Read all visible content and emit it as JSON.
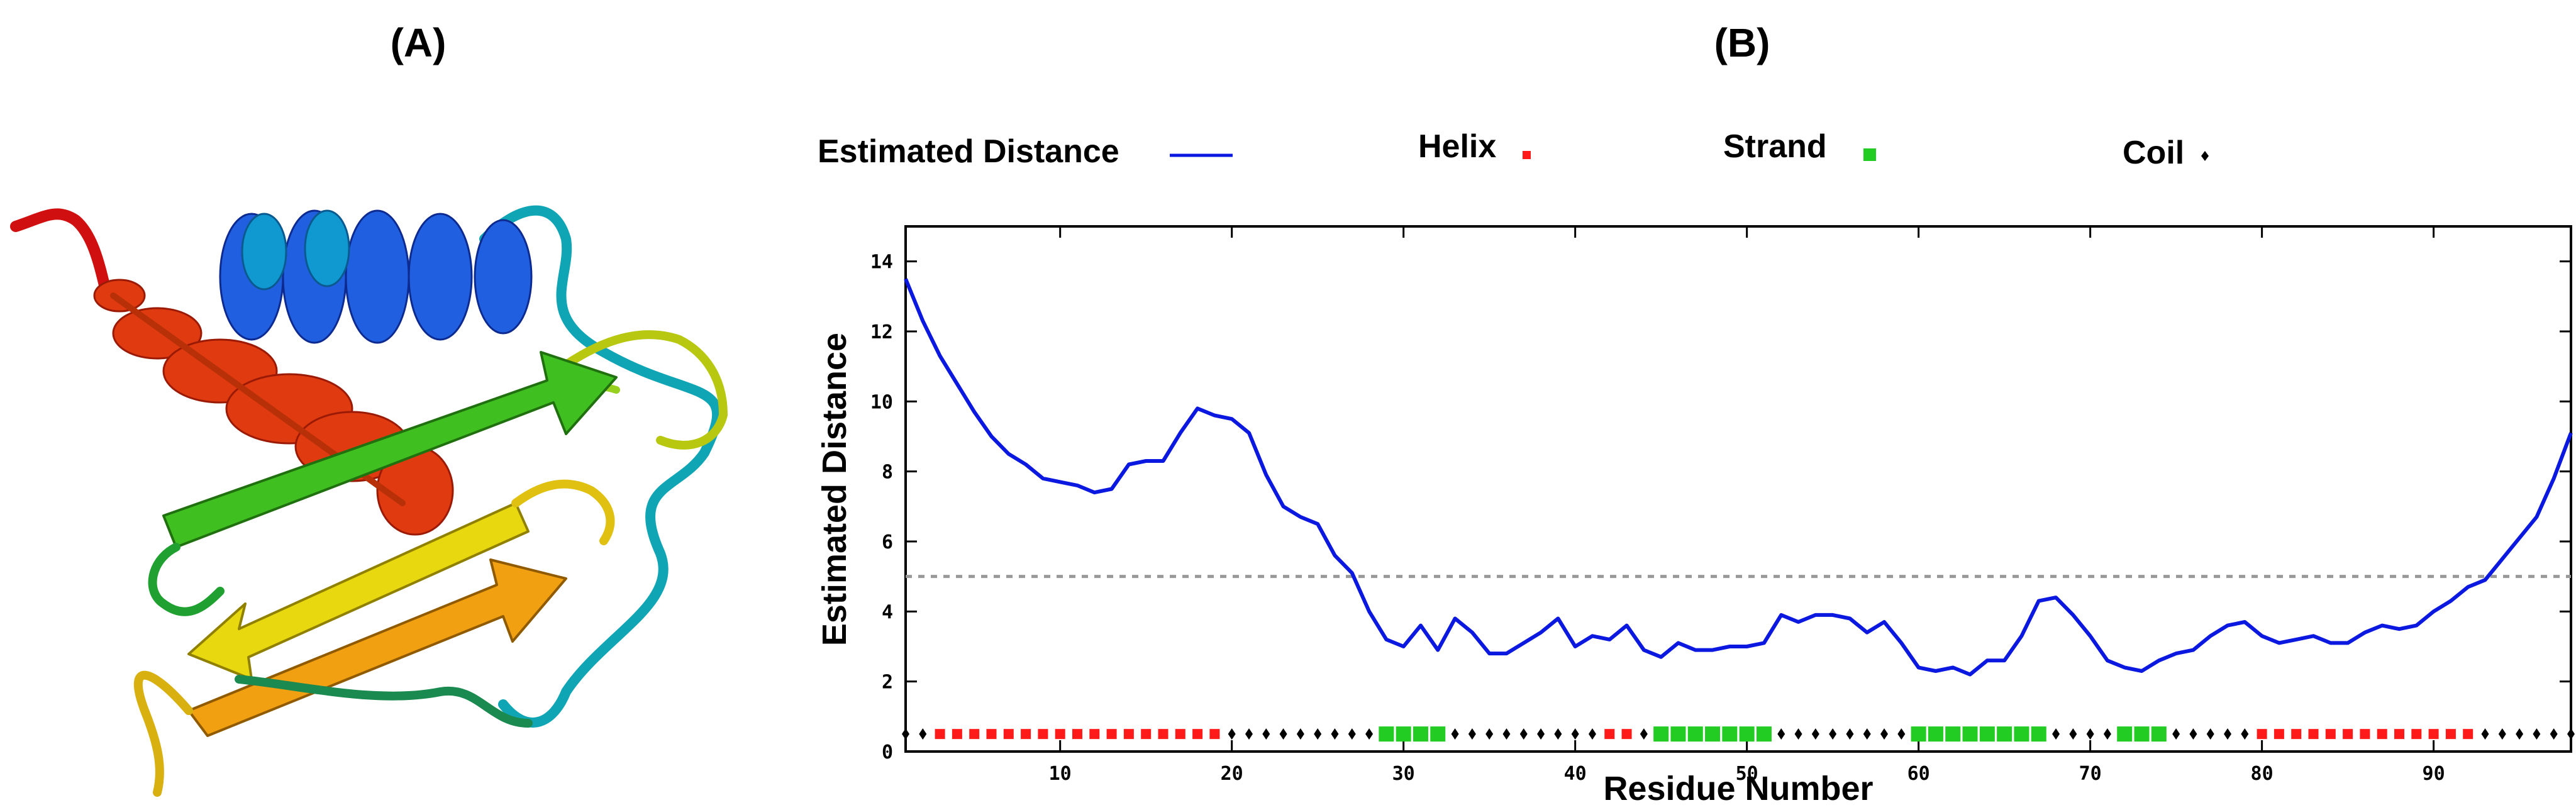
{
  "panel_a": {
    "label": "(A)",
    "image_description_icon": "protein-ribbon-structure-icon",
    "colors": [
      "#e01010",
      "#d84a10",
      "#e08a10",
      "#e8d010",
      "#b8e010",
      "#30c020",
      "#20a060",
      "#10b0b0",
      "#2090d0",
      "#1040e0"
    ]
  },
  "panel_b": {
    "label": "(B)",
    "legend": [
      {
        "label": "Estimated Distance",
        "marker": "line",
        "color": "#0b18e0"
      },
      {
        "label": "Helix",
        "marker": "small-square",
        "color": "#ff1a1a"
      },
      {
        "label": "Strand",
        "marker": "square",
        "color": "#22cc22"
      },
      {
        "label": "Coil",
        "marker": "diamond",
        "color": "#000000"
      }
    ]
  },
  "chart_data": {
    "type": "line",
    "xlabel": "Residue Number",
    "ylabel": "Estimated Distance",
    "xlim": [
      1,
      98
    ],
    "ylim": [
      0,
      15
    ],
    "xticks": [
      10,
      20,
      30,
      40,
      50,
      60,
      70,
      80,
      90
    ],
    "yticks": [
      0,
      2,
      4,
      6,
      8,
      10,
      12,
      14
    ],
    "threshold": {
      "y": 5,
      "style": "dashed",
      "color": "#999999"
    },
    "grid": false,
    "series": [
      {
        "name": "Estimated Distance",
        "color": "#0b18e0",
        "x": [
          1,
          2,
          3,
          4,
          5,
          6,
          7,
          8,
          9,
          10,
          11,
          12,
          13,
          14,
          15,
          16,
          17,
          18,
          19,
          20,
          21,
          22,
          23,
          24,
          25,
          26,
          27,
          28,
          29,
          30,
          31,
          32,
          33,
          34,
          35,
          36,
          37,
          38,
          39,
          40,
          41,
          42,
          43,
          44,
          45,
          46,
          47,
          48,
          49,
          50,
          51,
          52,
          53,
          54,
          55,
          56,
          57,
          58,
          59,
          60,
          61,
          62,
          63,
          64,
          65,
          66,
          67,
          68,
          69,
          70,
          71,
          72,
          73,
          74,
          75,
          76,
          77,
          78,
          79,
          80,
          81,
          82,
          83,
          84,
          85,
          86,
          87,
          88,
          89,
          90,
          91,
          92,
          93,
          94,
          95,
          96,
          97,
          98
        ],
        "y": [
          13.5,
          12.3,
          11.3,
          10.5,
          9.7,
          9.0,
          8.5,
          8.2,
          7.8,
          7.7,
          7.6,
          7.4,
          7.5,
          8.2,
          8.3,
          8.3,
          9.1,
          9.8,
          9.6,
          9.5,
          9.1,
          7.9,
          7.0,
          6.7,
          6.5,
          5.6,
          5.1,
          4.0,
          3.2,
          3.0,
          3.6,
          2.9,
          3.8,
          3.4,
          2.8,
          2.8,
          3.1,
          3.4,
          3.8,
          3.0,
          3.3,
          3.2,
          3.6,
          2.9,
          2.7,
          3.1,
          2.9,
          2.9,
          3.0,
          3.0,
          3.1,
          3.9,
          3.7,
          3.9,
          3.9,
          3.8,
          3.4,
          3.7,
          3.1,
          2.4,
          2.3,
          2.4,
          2.2,
          2.6,
          2.6,
          3.3,
          4.3,
          4.4,
          3.9,
          3.3,
          2.6,
          2.4,
          2.3,
          2.6,
          2.8,
          2.9,
          3.3,
          3.6,
          3.7,
          3.3,
          3.1,
          3.2,
          3.3,
          3.1,
          3.1,
          3.4,
          3.6,
          3.5,
          3.6,
          4.0,
          4.3,
          4.7,
          4.9,
          5.5,
          6.1,
          6.7,
          7.8,
          9.1
        ]
      },
      {
        "name": "Helix",
        "color": "#ff1a1a",
        "y_level": 0.5,
        "x": [
          3,
          4,
          5,
          6,
          7,
          8,
          9,
          10,
          11,
          12,
          13,
          14,
          15,
          16,
          17,
          18,
          19,
          42,
          43,
          80,
          81,
          82,
          83,
          84,
          85,
          86,
          87,
          88,
          89,
          90,
          91,
          92
        ]
      },
      {
        "name": "Strand",
        "color": "#22cc22",
        "y_level": 0.5,
        "x": [
          29,
          30,
          31,
          32,
          45,
          46,
          47,
          48,
          49,
          50,
          51,
          60,
          61,
          62,
          63,
          64,
          65,
          66,
          67,
          72,
          73,
          74
        ]
      },
      {
        "name": "Coil",
        "color": "#000000",
        "y_level": 0.5,
        "x": [
          1,
          2,
          20,
          21,
          22,
          23,
          24,
          25,
          26,
          27,
          28,
          33,
          34,
          35,
          36,
          37,
          38,
          39,
          40,
          41,
          44,
          52,
          53,
          54,
          55,
          56,
          57,
          58,
          59,
          68,
          69,
          70,
          71,
          75,
          76,
          77,
          78,
          79,
          93,
          94,
          95,
          96,
          97,
          98
        ]
      }
    ]
  }
}
